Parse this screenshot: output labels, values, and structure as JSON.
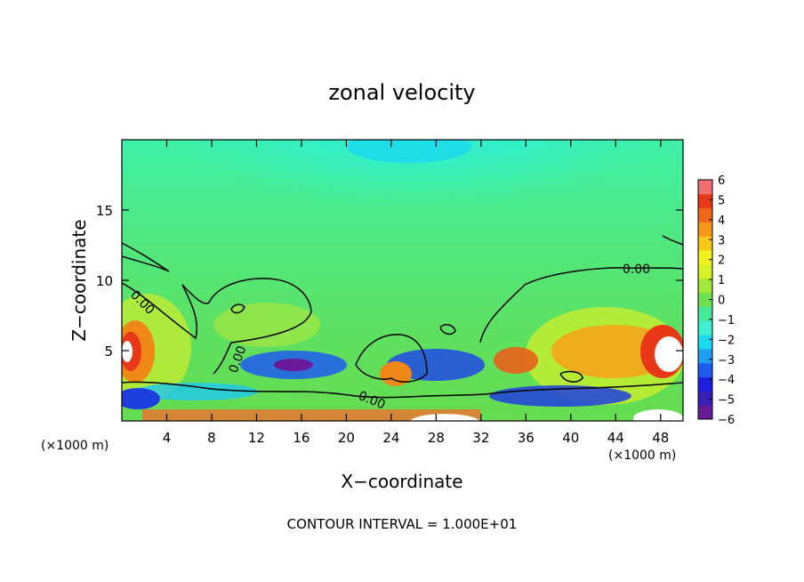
{
  "chart_data": {
    "type": "heatmap",
    "title": "zonal velocity",
    "xlabel": "X−coordinate",
    "ylabel": "Z−coordinate",
    "x_unit_label_left": "(×1000 m)",
    "x_unit_label_right": "(×1000 m)",
    "xlim": [
      0,
      50
    ],
    "ylim": [
      0,
      20
    ],
    "x_ticks": [
      "4",
      "8",
      "12",
      "16",
      "20",
      "24",
      "28",
      "32",
      "36",
      "40",
      "44",
      "48"
    ],
    "x_tick_values": [
      4,
      8,
      12,
      16,
      20,
      24,
      28,
      32,
      36,
      40,
      44,
      48
    ],
    "y_ticks": [
      "5",
      "10",
      "15"
    ],
    "y_tick_values": [
      5,
      10,
      15
    ],
    "colorbar": {
      "min": -6,
      "max": 6,
      "labels": [
        "6",
        "5",
        "4",
        "3",
        "2",
        "1",
        "0",
        "−1",
        "−2",
        "−3",
        "−4",
        "−5",
        "−6"
      ],
      "label_values": [
        6,
        5,
        4,
        3,
        2,
        1,
        0,
        -1,
        -2,
        -3,
        -4,
        -5,
        -6
      ],
      "colors": [
        "#6a1b9a",
        "#3a1fb5",
        "#1e1ee0",
        "#1e5cf0",
        "#1ea0f5",
        "#1ed8f0",
        "#3ef0d0",
        "#46e89a",
        "#6ee050",
        "#a0e83a",
        "#d8f028",
        "#f0f020",
        "#f8c818",
        "#f89818",
        "#f06818",
        "#e83818",
        "#f07070"
      ]
    },
    "contour_labels": [
      "0.00",
      "0.00",
      "0.00",
      "0.00"
    ],
    "footer": "CONTOUR INTERVAL = 1.000E+01"
  }
}
